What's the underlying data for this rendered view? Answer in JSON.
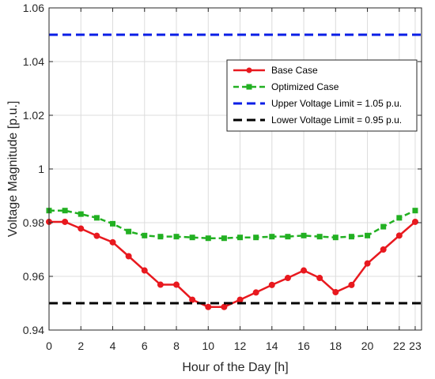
{
  "chart_data": {
    "type": "line",
    "xlabel": "Hour of the Day [h]",
    "ylabel": "Voltage Magnitude [p.u.]",
    "xlim": [
      0,
      23.4
    ],
    "ylim": [
      0.94,
      1.06
    ],
    "x_ticks": [
      0,
      2,
      4,
      6,
      8,
      10,
      12,
      14,
      16,
      18,
      20,
      22,
      23
    ],
    "y_ticks": [
      0.94,
      0.96,
      0.98,
      1,
      1.02,
      1.04,
      1.06
    ],
    "x_tick_labels": [
      "0",
      "2",
      "4",
      "6",
      "8",
      "10",
      "12",
      "14",
      "16",
      "18",
      "20",
      "22",
      "23"
    ],
    "y_tick_labels": [
      "0.94",
      "0.96",
      "0.98",
      "1",
      "1.02",
      "1.04",
      "1.06"
    ],
    "grid": true,
    "legend_position": "top-right",
    "x": [
      0,
      1,
      2,
      3,
      4,
      5,
      6,
      7,
      8,
      9,
      10,
      11,
      12,
      13,
      14,
      15,
      16,
      17,
      18,
      19,
      20,
      21,
      22,
      23
    ],
    "series": [
      {
        "name": "Base Case",
        "color": "#e8191f",
        "style": "solid",
        "marker": "circle",
        "values": [
          0.9803,
          0.9803,
          0.9778,
          0.9751,
          0.9727,
          0.9675,
          0.9622,
          0.9569,
          0.9569,
          0.9513,
          0.9486,
          0.9486,
          0.9513,
          0.954,
          0.9568,
          0.9594,
          0.9622,
          0.9594,
          0.9541,
          0.9568,
          0.9648,
          0.97,
          0.9752,
          0.9803
        ]
      },
      {
        "name": "Optimized Case",
        "color": "#22b022",
        "style": "dashed",
        "marker": "square",
        "values": [
          0.9845,
          0.9845,
          0.9832,
          0.9818,
          0.9796,
          0.9767,
          0.9752,
          0.9748,
          0.9748,
          0.9745,
          0.9742,
          0.9742,
          0.9745,
          0.9745,
          0.9748,
          0.9748,
          0.9752,
          0.9748,
          0.9745,
          0.9748,
          0.9752,
          0.9785,
          0.9818,
          0.9845
        ]
      },
      {
        "name": "Upper Voltage Limit = 1.05 p.u.",
        "color": "#0a1ee6",
        "style": "dashed",
        "marker": "none",
        "values": [
          1.05,
          1.05,
          1.05,
          1.05,
          1.05,
          1.05,
          1.05,
          1.05,
          1.05,
          1.05,
          1.05,
          1.05,
          1.05,
          1.05,
          1.05,
          1.05,
          1.05,
          1.05,
          1.05,
          1.05,
          1.05,
          1.05,
          1.05,
          1.05
        ]
      },
      {
        "name": "Lower Voltage Limit = 0.95 p.u.",
        "color": "#000000",
        "style": "dashed",
        "marker": "none",
        "values": [
          0.95,
          0.95,
          0.95,
          0.95,
          0.95,
          0.95,
          0.95,
          0.95,
          0.95,
          0.95,
          0.95,
          0.95,
          0.95,
          0.95,
          0.95,
          0.95,
          0.95,
          0.95,
          0.95,
          0.95,
          0.95,
          0.95,
          0.95,
          0.95
        ]
      }
    ]
  }
}
